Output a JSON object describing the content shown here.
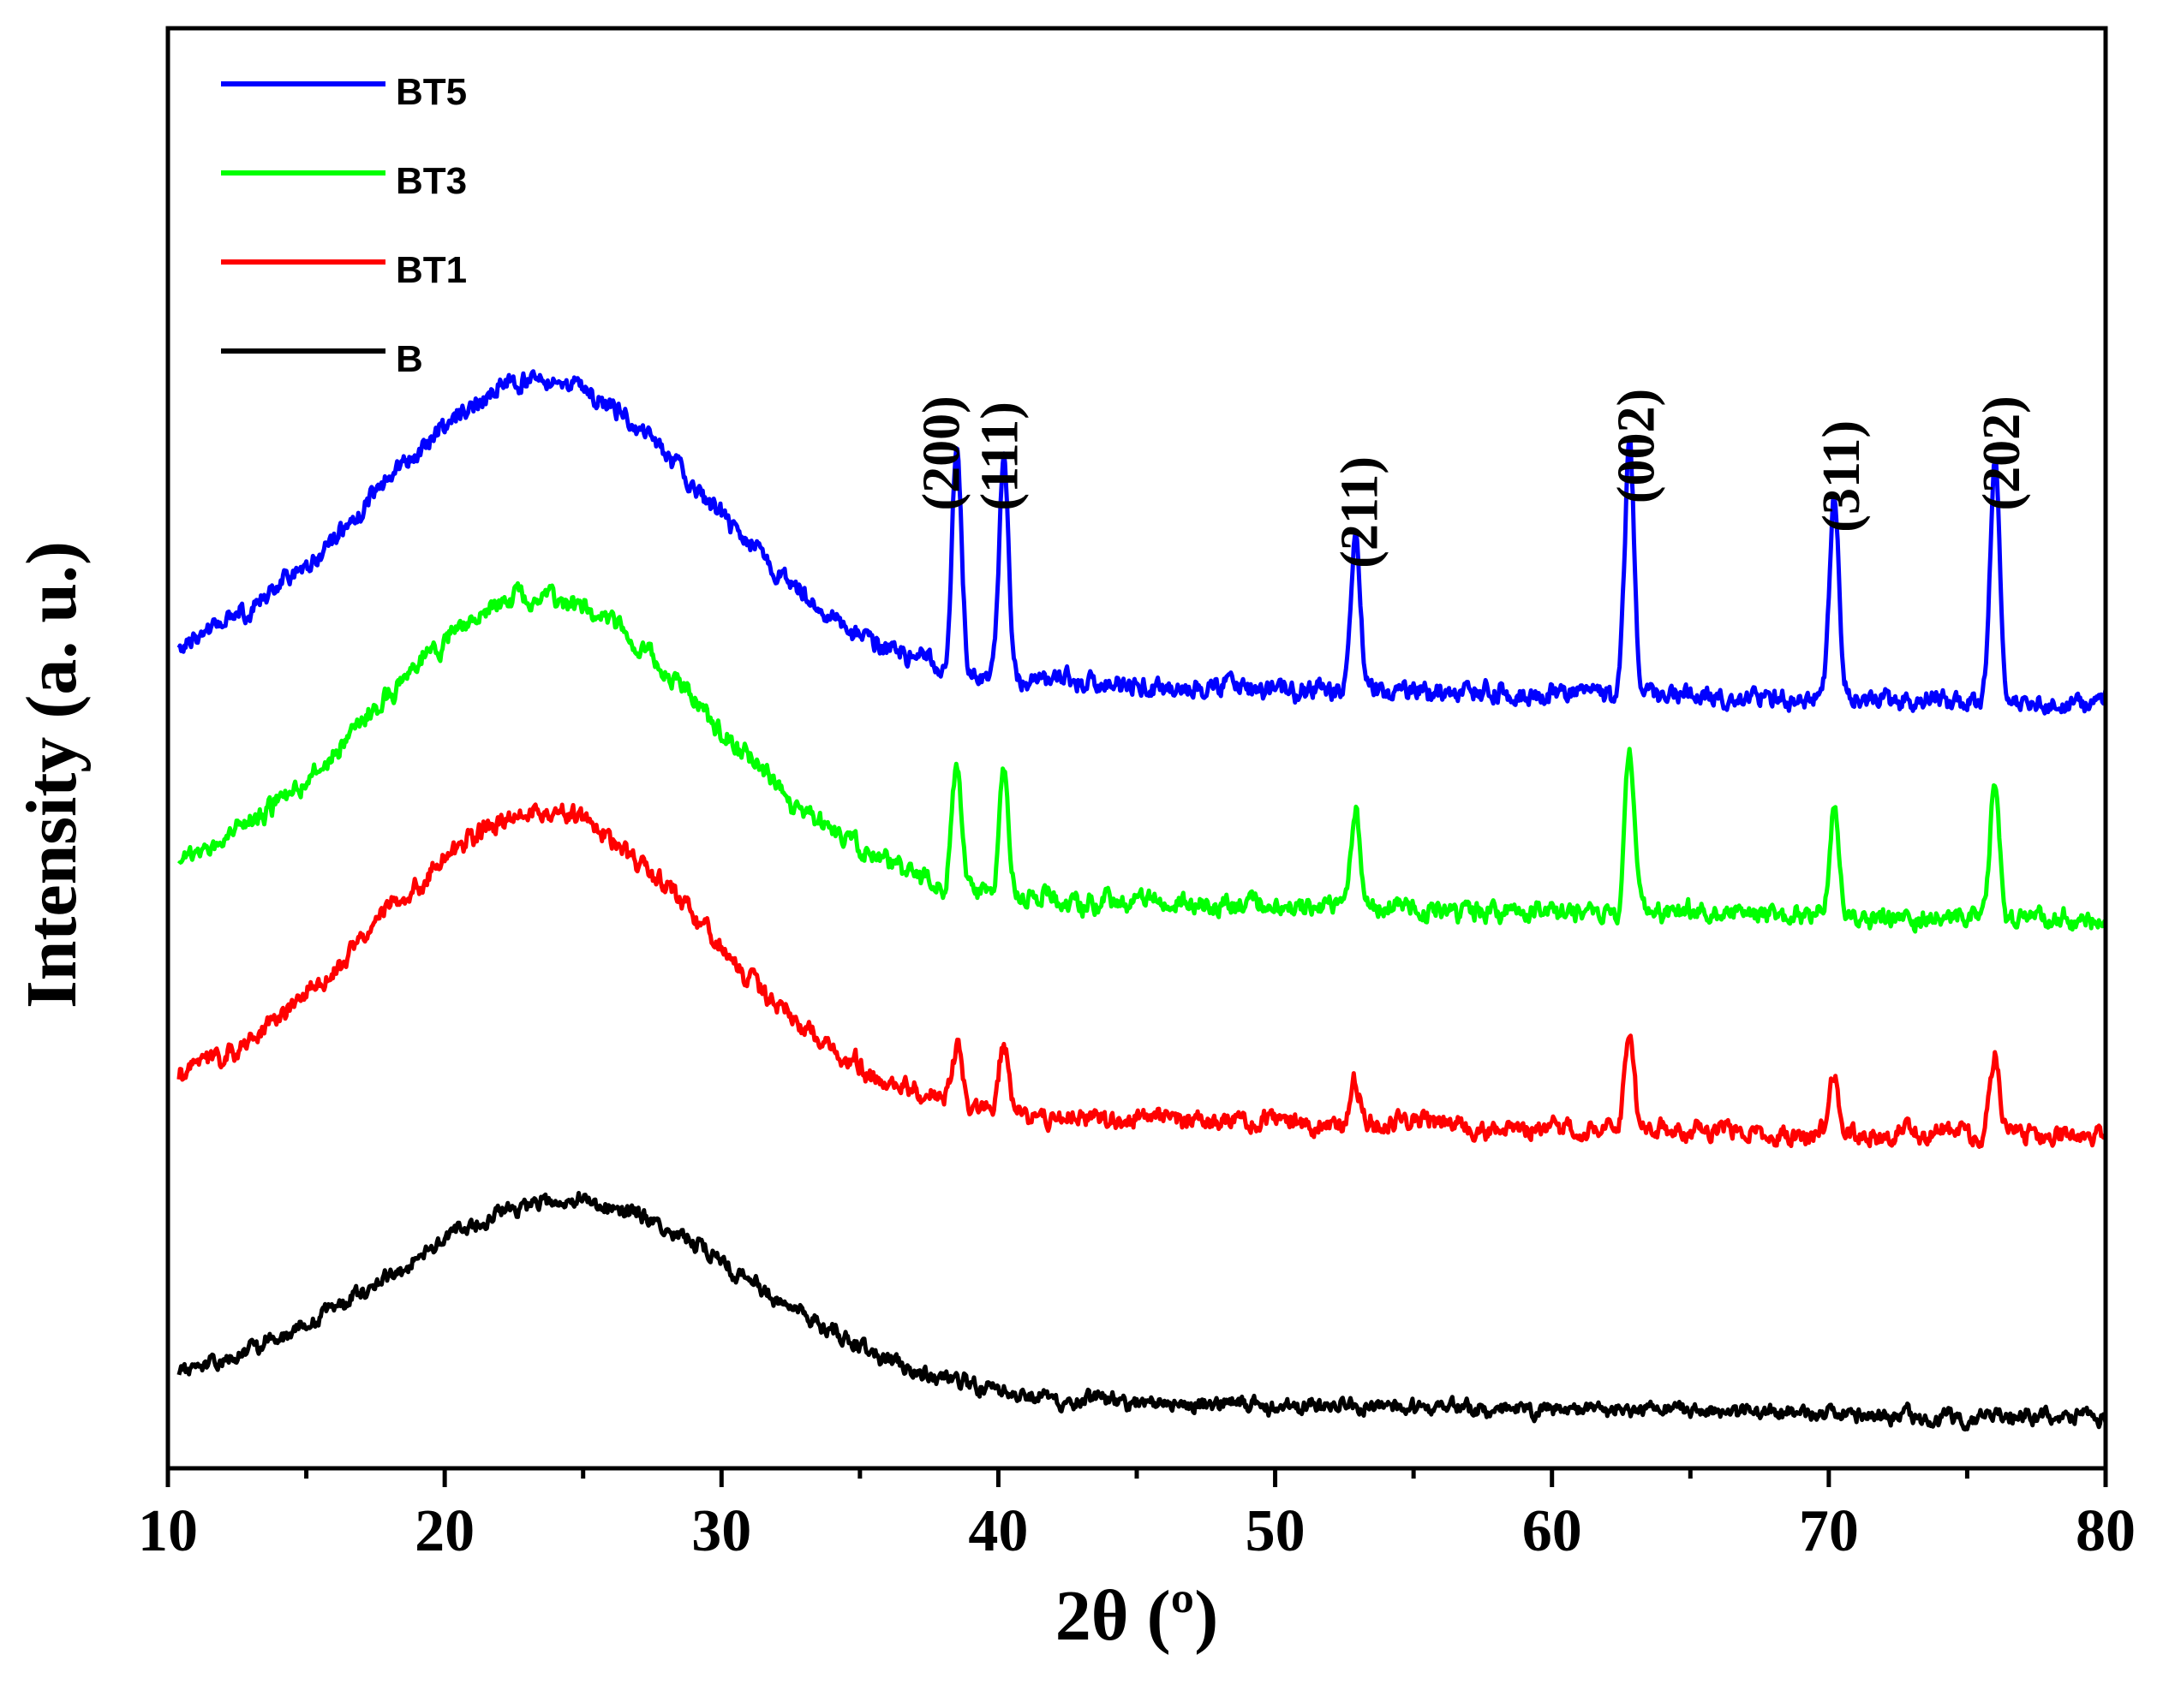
{
  "chart_data": {
    "type": "line",
    "title": "",
    "xlabel": "2θ (º)",
    "ylabel": "Intensity (a. u.)",
    "xlim": [
      10,
      80
    ],
    "ylim": [
      0,
      10
    ],
    "xticks": [
      10,
      20,
      30,
      40,
      50,
      60,
      70,
      80
    ],
    "xtick_labels": [
      "10",
      "20",
      "30",
      "40",
      "50",
      "60",
      "70",
      "80"
    ],
    "yticks": [],
    "grid": false,
    "legend_position": "top-left",
    "series": [
      {
        "name": "BT5",
        "color": "#0000ff",
        "offset": 5.55,
        "amorphous_hump": {
          "center": 23.5,
          "width": 6.0,
          "height": 2.05
        },
        "baseline": {
          "start": 0.0,
          "end": -0.25
        },
        "noise": 0.05,
        "peaks": [
          {
            "hkl": "(200)",
            "x": 38.5,
            "height": 1.55
          },
          {
            "hkl": "(111)",
            "x": 40.2,
            "height": 1.55
          },
          {
            "hkl": "(211)",
            "x": 52.9,
            "height": 1.05
          },
          {
            "hkl": "(002)",
            "x": 62.8,
            "height": 1.75
          },
          {
            "hkl": "(311)",
            "x": 70.2,
            "height": 1.4
          },
          {
            "hkl": "(202)",
            "x": 76.0,
            "height": 1.7
          }
        ]
      },
      {
        "name": "BT3",
        "color": "#00ff00",
        "offset": 4.05,
        "amorphous_hump": {
          "center": 23.5,
          "width": 6.0,
          "height": 2.05
        },
        "baseline": {
          "start": 0.0,
          "end": -0.25
        },
        "noise": 0.05,
        "peaks": [
          {
            "hkl": "(200)",
            "x": 38.5,
            "height": 0.85
          },
          {
            "hkl": "(111)",
            "x": 40.2,
            "height": 0.85
          },
          {
            "hkl": "(211)",
            "x": 52.9,
            "height": 0.65
          },
          {
            "hkl": "(002)",
            "x": 62.8,
            "height": 1.15
          },
          {
            "hkl": "(311)",
            "x": 70.2,
            "height": 0.75
          },
          {
            "hkl": "(202)",
            "x": 76.0,
            "height": 1.0
          }
        ]
      },
      {
        "name": "BT1",
        "color": "#ff0000",
        "offset": 2.55,
        "amorphous_hump": {
          "center": 23.5,
          "width": 6.0,
          "height": 2.05
        },
        "baseline": {
          "start": 0.0,
          "end": -0.25
        },
        "noise": 0.05,
        "peaks": [
          {
            "hkl": "(200)",
            "x": 38.5,
            "height": 0.4
          },
          {
            "hkl": "(111)",
            "x": 40.2,
            "height": 0.45
          },
          {
            "hkl": "(211)",
            "x": 52.9,
            "height": 0.3
          },
          {
            "hkl": "(002)",
            "x": 62.8,
            "height": 0.65
          },
          {
            "hkl": "(311)",
            "x": 70.2,
            "height": 0.4
          },
          {
            "hkl": "(202)",
            "x": 76.0,
            "height": 0.55
          }
        ]
      },
      {
        "name": "B",
        "color": "#000000",
        "offset": 0.55,
        "amorphous_hump": {
          "center": 24.5,
          "width": 6.5,
          "height": 1.35
        },
        "baseline": {
          "start": 0.0,
          "end": -0.2
        },
        "noise": 0.04,
        "peaks": []
      }
    ],
    "annotations": [
      {
        "text": "(200)",
        "x": 37.9,
        "y": 6.65
      },
      {
        "text": "(111)",
        "x": 40.0,
        "y": 6.65
      },
      {
        "text": "(211)",
        "x": 53.0,
        "y": 6.25
      },
      {
        "text": "(002)",
        "x": 63.0,
        "y": 6.7
      },
      {
        "text": "(311)",
        "x": 70.4,
        "y": 6.5
      },
      {
        "text": "(202)",
        "x": 76.2,
        "y": 6.65
      }
    ],
    "legend": [
      "BT5",
      "BT3",
      "BT1",
      "B"
    ]
  }
}
